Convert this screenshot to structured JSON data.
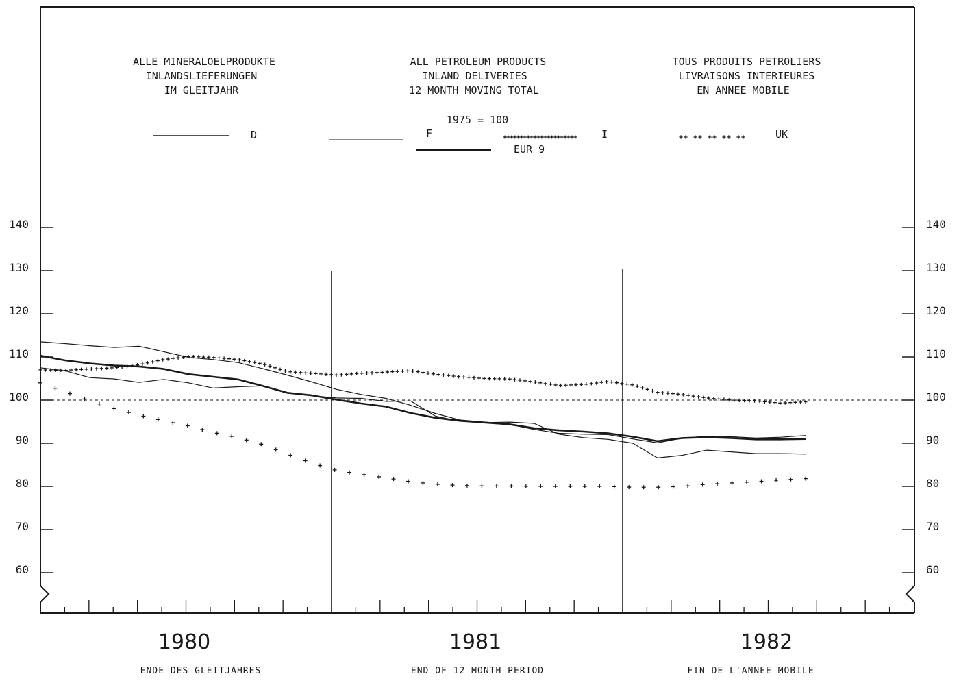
{
  "chart_data": {
    "type": "line",
    "header": {
      "de": [
        "ALLE MINERALOELPRODUKTE",
        "INLANDSLIEFERUNGEN",
        "IM GLEITJAHR"
      ],
      "en": [
        "ALL PETROLEUM PRODUCTS",
        "INLAND DELIVERIES",
        "12 MONTH MOVING TOTAL"
      ],
      "fr": [
        "TOUS PRODUITS PETROLIERS",
        "LIVRAISONS INTERIEURES",
        "EN ANNEE MOBILE"
      ],
      "base": "1975 = 100"
    },
    "footer": {
      "de": "ENDE DES GLEITJAHRES",
      "en": "END OF 12 MONTH PERIOD",
      "fr": "FIN DE L'ANNEE MOBILE"
    },
    "y_ticks": [
      "140",
      "130",
      "120",
      "110",
      "100",
      "90",
      "80",
      "70",
      "60"
    ],
    "ylim": [
      50,
      150
    ],
    "years": [
      "1980",
      "1981",
      "1982"
    ],
    "reference_line": 100,
    "legend_placement": "top",
    "series": [
      {
        "name": "D",
        "style": "thin",
        "values": [
          113.5,
          113.1,
          112.6,
          112.2,
          112.5,
          111.2,
          109.9,
          109.4,
          108.7,
          107.3,
          105.8,
          104.2,
          102.5,
          101.3,
          100.4,
          98.8,
          96.9,
          95.4,
          94.9,
          94.4,
          93.2,
          92.3,
          92.1,
          92.0,
          91.0,
          90.1,
          91.2,
          91.6,
          91.5,
          91.2,
          91.4,
          91.8
        ]
      },
      {
        "name": "F",
        "style": "thin",
        "values": [
          107.5,
          106.8,
          105.2,
          104.9,
          104.1,
          104.8,
          104.0,
          102.8,
          103.1,
          103.3,
          101.7,
          101.0,
          100.5,
          100.4,
          99.7,
          99.8,
          96.3,
          95.1,
          94.8,
          94.9,
          94.6,
          92.1,
          91.3,
          90.9,
          90.0,
          86.6,
          87.2,
          88.4,
          88.0,
          87.6,
          87.6,
          87.5
        ]
      },
      {
        "name": "EUR 9",
        "style": "thick",
        "values": [
          110.3,
          109.2,
          108.5,
          108.0,
          107.8,
          107.2,
          106.0,
          105.4,
          104.8,
          103.3,
          101.7,
          101.1,
          100.1,
          99.2,
          98.5,
          97.0,
          95.9,
          95.2,
          94.8,
          94.4,
          93.5,
          93.0,
          92.7,
          92.3,
          91.5,
          90.5,
          91.2,
          91.4,
          91.2,
          90.9,
          90.9,
          91.0
        ]
      },
      {
        "name": "I",
        "style": "dense-cross",
        "values": [
          107.0,
          106.9,
          107.2,
          107.5,
          108.2,
          109.4,
          110.1,
          109.9,
          109.4,
          108.4,
          106.6,
          106.2,
          105.8,
          106.2,
          106.5,
          106.8,
          106.0,
          105.4,
          105.0,
          104.9,
          104.2,
          103.4,
          103.6,
          104.3,
          103.5,
          101.8,
          101.3,
          100.5,
          100.0,
          99.8,
          99.3,
          99.6
        ]
      },
      {
        "name": "UK",
        "style": "sparse-cross",
        "values": [
          104.0,
          101.9,
          99.8,
          98.0,
          96.5,
          95.2,
          94.0,
          92.5,
          91.3,
          89.7,
          87.5,
          85.4,
          83.7,
          82.8,
          82.0,
          81.1,
          80.5,
          80.2,
          80.1,
          80.1,
          80.0,
          80.0,
          80.0,
          80.0,
          79.8,
          79.8,
          80.0,
          80.5,
          80.8,
          81.1,
          81.5,
          81.8
        ]
      }
    ]
  }
}
